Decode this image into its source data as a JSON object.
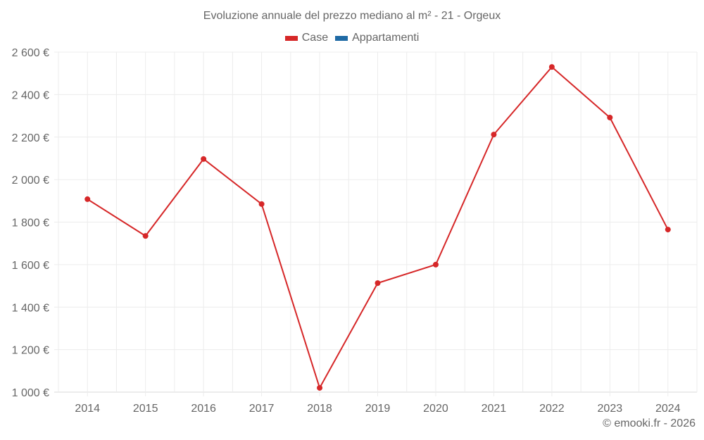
{
  "title": "Evoluzione annuale del prezzo mediano al m² - 21 - Orgeux",
  "legend": [
    {
      "label": "Case",
      "color": "#d62728"
    },
    {
      "label": "Appartamenti",
      "color": "#1f6aa5"
    }
  ],
  "credit": "© emooki.fr - 2026",
  "chart_data": {
    "type": "line",
    "title": "Evoluzione annuale del prezzo mediano al m² - 21 - Orgeux",
    "xlabel": "",
    "ylabel": "",
    "categories": [
      "2014",
      "2015",
      "2016",
      "2017",
      "2018",
      "2019",
      "2020",
      "2021",
      "2022",
      "2023",
      "2024"
    ],
    "series": [
      {
        "name": "Case",
        "color": "#d62728",
        "values": [
          1908,
          1735,
          2097,
          1885,
          1020,
          1513,
          1600,
          2212,
          2530,
          2292,
          1765
        ]
      },
      {
        "name": "Appartamenti",
        "color": "#1f6aa5",
        "values": []
      }
    ],
    "ylim": [
      1000,
      2600
    ],
    "yticks": [
      1000,
      1200,
      1400,
      1600,
      1800,
      2000,
      2200,
      2400,
      2600
    ],
    "ytick_labels": [
      "1 000 €",
      "1 200 €",
      "1 400 €",
      "1 600 €",
      "1 800 €",
      "2 000 €",
      "2 200 €",
      "2 400 €",
      "2 600 €"
    ],
    "grid": true,
    "legend_position": "top"
  }
}
